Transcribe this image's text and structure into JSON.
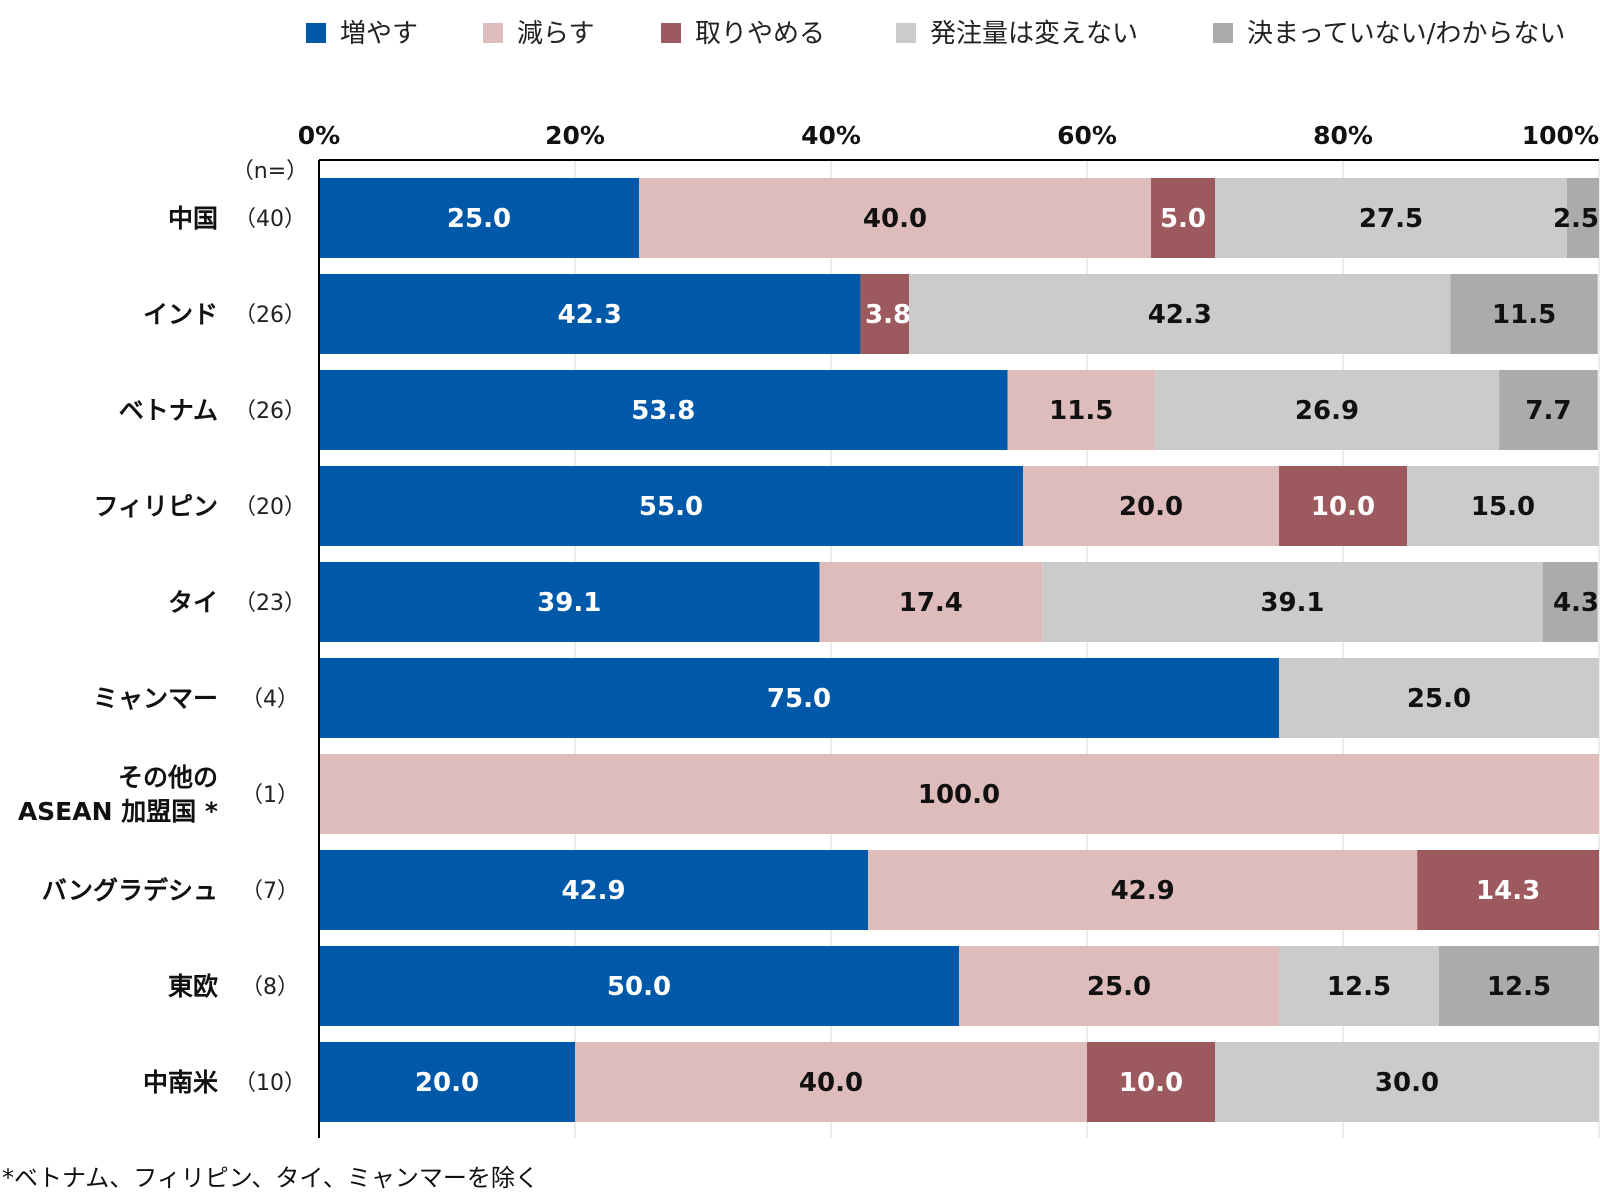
{
  "chart_data": {
    "type": "bar",
    "orientation": "horizontal",
    "stacked": "percent",
    "legend_position": "top",
    "grid": true,
    "xlim": [
      0,
      100
    ],
    "x_ticks": [
      "0%",
      "20%",
      "40%",
      "60%",
      "80%",
      "100%"
    ],
    "n_header": "（n=）",
    "categories": [
      {
        "label": [
          "中国"
        ],
        "n": "（40）"
      },
      {
        "label": [
          "インド"
        ],
        "n": "（26）"
      },
      {
        "label": [
          "ベトナム"
        ],
        "n": "（26）"
      },
      {
        "label": [
          "フィリピン"
        ],
        "n": "（20）"
      },
      {
        "label": [
          "タイ"
        ],
        "n": "（23）"
      },
      {
        "label": [
          "ミャンマー"
        ],
        "n": "（4）"
      },
      {
        "label": [
          "その他の",
          "ASEAN 加盟国 *"
        ],
        "n": "（1）"
      },
      {
        "label": [
          "バングラデシュ"
        ],
        "n": "（7）"
      },
      {
        "label": [
          "東欧"
        ],
        "n": "（8）"
      },
      {
        "label": [
          "中南米"
        ],
        "n": "（10）"
      }
    ],
    "series": [
      {
        "name": "増やす",
        "color": "#0059a8",
        "label_color": "#ffffff",
        "values": [
          25.0,
          42.3,
          53.8,
          55.0,
          39.1,
          75.0,
          0,
          42.9,
          50.0,
          20.0
        ]
      },
      {
        "name": "減らす",
        "color": "#dfbcbc",
        "label_color": "#111111",
        "values": [
          40.0,
          0,
          11.5,
          20.0,
          17.4,
          0,
          100.0,
          42.9,
          25.0,
          40.0
        ]
      },
      {
        "name": "取りやめる",
        "color": "#9c5a5e",
        "label_color": "#ffffff",
        "values": [
          5.0,
          3.8,
          0,
          10.0,
          0,
          0,
          0,
          14.3,
          0,
          10.0
        ]
      },
      {
        "name": "発注量は変えない",
        "color": "#cbcbcb",
        "label_color": "#111111",
        "values": [
          27.5,
          42.3,
          26.9,
          15.0,
          39.1,
          25.0,
          0,
          0,
          12.5,
          30.0
        ]
      },
      {
        "name": "決まっていない/わからない",
        "color": "#ababab",
        "label_color": "#111111",
        "values": [
          2.5,
          11.5,
          7.7,
          0,
          4.3,
          0,
          0,
          0,
          12.5,
          0
        ]
      }
    ],
    "footnote": "*ベトナム、フィリピン、タイ、ミャンマーを除く"
  }
}
